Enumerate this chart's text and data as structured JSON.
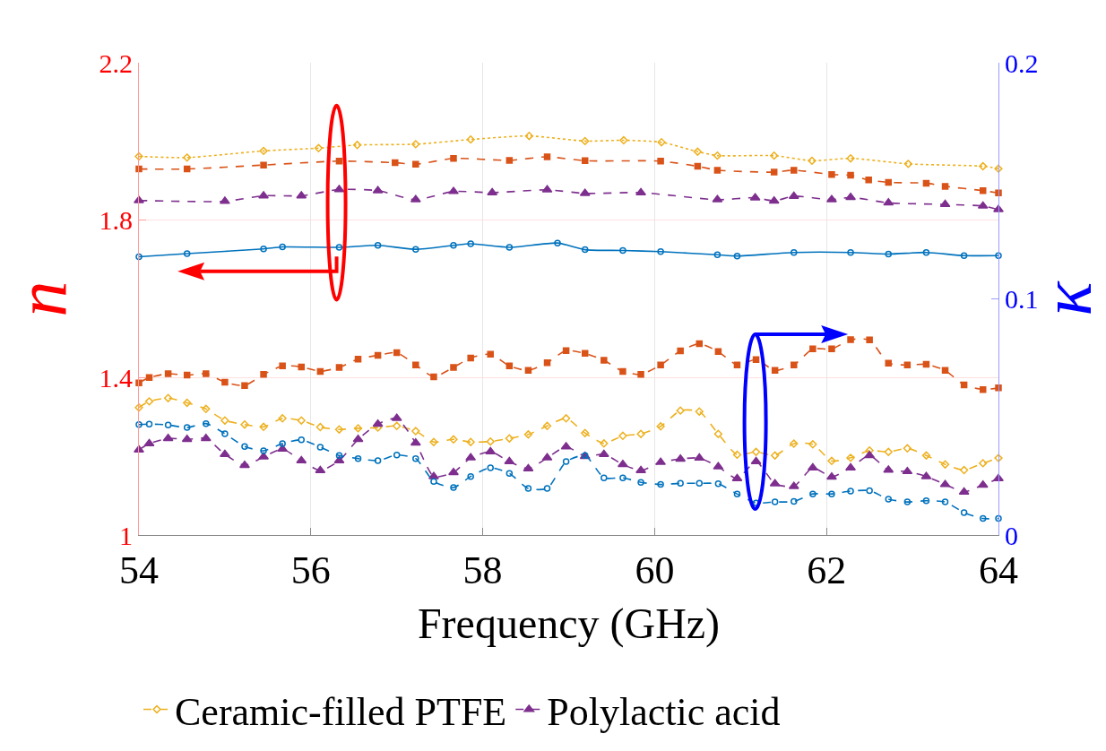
{
  "chart_data": {
    "type": "line",
    "xlabel": "Frequency (GHz)",
    "ylabel": "n",
    "y2label": "κ",
    "xlim": [
      54,
      64
    ],
    "xticks": [
      54,
      56,
      58,
      60,
      62,
      64
    ],
    "ylim": [
      1,
      2.2
    ],
    "yticks": [
      1,
      1.4,
      1.8,
      2.2
    ],
    "y2lim": [
      0,
      0.2
    ],
    "y2ticks": [
      0,
      0.1,
      0.2
    ],
    "grid": true,
    "legend": "bottom",
    "series": [
      {
        "color": "#edb120",
        "marker": "diamond",
        "line_style": "dotted",
        "x": [
          54,
          54.56,
          55.45,
          56.09,
          56.54,
          57.22,
          57.86,
          58.54,
          59.19,
          59.64,
          60.08,
          60.5,
          60.73,
          61.39,
          61.83,
          62.28,
          62.95,
          63.82,
          64
        ],
        "values": [
          1.962,
          1.959,
          1.976,
          1.983,
          1.991,
          1.993,
          2.005,
          2.014,
          2.001,
          2.003,
          1.998,
          1.974,
          1.964,
          1.964,
          1.951,
          1.957,
          1.943,
          1.937,
          1.931
        ]
      },
      {
        "color": "#d95319",
        "marker": "square",
        "line_style": "dashed",
        "x": [
          54,
          54.56,
          55.45,
          56.33,
          56.98,
          57.22,
          57.66,
          58.31,
          58.75,
          59.19,
          60.07,
          60.5,
          60.73,
          61.39,
          61.62,
          62.06,
          62.28,
          62.49,
          62.72,
          63.16,
          63.38,
          63.82,
          64
        ],
        "values": [
          1.93,
          1.93,
          1.94,
          1.95,
          1.946,
          1.942,
          1.957,
          1.952,
          1.961,
          1.951,
          1.95,
          1.937,
          1.927,
          1.922,
          1.927,
          1.916,
          1.914,
          1.902,
          1.896,
          1.894,
          1.886,
          1.875,
          1.869
        ]
      },
      {
        "color": "#7e2f8e",
        "marker": "triangle",
        "line_style": "dashed",
        "x": [
          54,
          55.0,
          55.45,
          55.89,
          56.33,
          56.78,
          57.22,
          57.66,
          58.11,
          58.75,
          59.19,
          59.84,
          60.73,
          61.17,
          61.39,
          61.62,
          62.06,
          62.28,
          62.72,
          63.38,
          63.82,
          64
        ],
        "values": [
          1.85,
          1.848,
          1.862,
          1.862,
          1.878,
          1.875,
          1.852,
          1.873,
          1.87,
          1.877,
          1.868,
          1.87,
          1.852,
          1.857,
          1.849,
          1.861,
          1.852,
          1.858,
          1.844,
          1.84,
          1.836,
          1.827
        ]
      },
      {
        "color": "#0072bd",
        "marker": "circle",
        "line_style": "solid",
        "x": [
          54,
          54.56,
          55.45,
          55.67,
          56.33,
          56.78,
          57.22,
          57.66,
          57.86,
          58.31,
          58.87,
          59.19,
          59.63,
          60.07,
          60.73,
          60.96,
          61.62,
          62.28,
          62.72,
          63.16,
          63.6,
          64
        ],
        "values": [
          1.707,
          1.715,
          1.727,
          1.732,
          1.731,
          1.736,
          1.726,
          1.736,
          1.74,
          1.731,
          1.742,
          1.725,
          1.723,
          1.72,
          1.712,
          1.709,
          1.718,
          1.718,
          1.714,
          1.718,
          1.71,
          1.71
        ]
      },
      {
        "color": "#d95319",
        "marker": "square",
        "line_style": "dashed",
        "axis": "y2",
        "x": [
          54,
          54.12,
          54.34,
          54.56,
          54.78,
          55.0,
          55.23,
          55.45,
          55.67,
          55.89,
          56.11,
          56.33,
          56.55,
          56.78,
          57.0,
          57.22,
          57.43,
          57.66,
          57.86,
          58.09,
          58.31,
          58.53,
          58.75,
          58.97,
          59.19,
          59.41,
          59.63,
          59.84,
          60.07,
          60.3,
          60.52,
          60.74,
          60.96,
          61.18,
          61.4,
          61.62,
          61.84,
          62.06,
          62.28,
          62.5,
          62.72,
          62.94,
          63.16,
          63.38,
          63.6,
          63.82,
          64
        ],
        "values": [
          0.0644,
          0.0667,
          0.0683,
          0.0677,
          0.0683,
          0.0647,
          0.0633,
          0.068,
          0.0716,
          0.0712,
          0.0693,
          0.071,
          0.0745,
          0.0761,
          0.0772,
          0.072,
          0.067,
          0.071,
          0.075,
          0.0766,
          0.0716,
          0.0697,
          0.073,
          0.0781,
          0.0769,
          0.074,
          0.0693,
          0.068,
          0.072,
          0.078,
          0.081,
          0.0777,
          0.072,
          0.0743,
          0.0697,
          0.072,
          0.0788,
          0.0788,
          0.0827,
          0.0826,
          0.0728,
          0.072,
          0.0723,
          0.0697,
          0.0636,
          0.0616,
          0.0623
        ]
      },
      {
        "name": "Ceramic-filled PTFE",
        "color": "#edb120",
        "marker": "diamond",
        "line_style": "dashed",
        "axis": "y2",
        "x": [
          54,
          54.12,
          54.34,
          54.56,
          54.78,
          55.0,
          55.23,
          55.45,
          55.67,
          55.89,
          56.11,
          56.33,
          56.55,
          56.78,
          57.0,
          57.22,
          57.43,
          57.66,
          57.86,
          58.09,
          58.31,
          58.53,
          58.75,
          58.97,
          59.19,
          59.41,
          59.63,
          59.84,
          60.07,
          60.3,
          60.52,
          60.74,
          60.96,
          61.18,
          61.4,
          61.62,
          61.84,
          62.06,
          62.28,
          62.5,
          62.72,
          62.94,
          63.16,
          63.38,
          63.6,
          63.82,
          64
        ],
        "values": [
          0.054,
          0.0566,
          0.058,
          0.056,
          0.0534,
          0.0485,
          0.0468,
          0.0458,
          0.0494,
          0.0485,
          0.0457,
          0.0447,
          0.0452,
          0.0455,
          0.0462,
          0.044,
          0.0394,
          0.0405,
          0.0394,
          0.0396,
          0.0409,
          0.0426,
          0.0462,
          0.0494,
          0.0432,
          0.0388,
          0.042,
          0.0428,
          0.046,
          0.0527,
          0.0523,
          0.0428,
          0.034,
          0.0352,
          0.0337,
          0.0387,
          0.0384,
          0.0314,
          0.0327,
          0.0358,
          0.0352,
          0.0367,
          0.0337,
          0.0299,
          0.0275,
          0.0304,
          0.0326
        ]
      },
      {
        "name": "Polylactic acid",
        "color": "#7e2f8e",
        "marker": "triangle",
        "line_style": "dashed",
        "axis": "y2",
        "x": [
          54,
          54.12,
          54.34,
          54.56,
          54.78,
          55.0,
          55.23,
          55.45,
          55.67,
          55.89,
          56.11,
          56.33,
          56.55,
          56.78,
          57.0,
          57.22,
          57.43,
          57.66,
          57.86,
          58.09,
          58.31,
          58.53,
          58.75,
          58.97,
          59.19,
          59.41,
          59.63,
          59.84,
          60.07,
          60.3,
          60.52,
          60.74,
          60.96,
          61.18,
          61.4,
          61.62,
          61.84,
          62.06,
          62.28,
          62.5,
          62.72,
          62.94,
          63.16,
          63.38,
          63.6,
          63.82,
          64
        ],
        "values": [
          0.0361,
          0.0387,
          0.0409,
          0.0405,
          0.0409,
          0.0342,
          0.0295,
          0.0331,
          0.0364,
          0.0315,
          0.0273,
          0.0315,
          0.0405,
          0.047,
          0.0494,
          0.039,
          0.0248,
          0.0265,
          0.0327,
          0.0353,
          0.0311,
          0.0281,
          0.0327,
          0.0374,
          0.0333,
          0.0342,
          0.0299,
          0.0273,
          0.0308,
          0.0322,
          0.0326,
          0.0289,
          0.0239,
          0.0311,
          0.0217,
          0.0206,
          0.0285,
          0.0246,
          0.0285,
          0.0337,
          0.0275,
          0.0269,
          0.0248,
          0.0214,
          0.0182,
          0.0212,
          0.0239
        ]
      },
      {
        "color": "#0072bd",
        "marker": "circle",
        "line_style": "dashed",
        "axis": "y2",
        "x": [
          54,
          54.12,
          54.34,
          54.56,
          54.78,
          55.0,
          55.23,
          55.45,
          55.67,
          55.89,
          56.11,
          56.33,
          56.55,
          56.78,
          57.0,
          57.22,
          57.43,
          57.66,
          57.86,
          58.09,
          58.31,
          58.53,
          58.75,
          58.97,
          59.19,
          59.41,
          59.63,
          59.84,
          60.07,
          60.3,
          60.52,
          60.74,
          60.96,
          61.18,
          61.4,
          61.62,
          61.84,
          62.06,
          62.28,
          62.5,
          62.72,
          62.94,
          63.16,
          63.38,
          63.6,
          63.82,
          64
        ],
        "values": [
          0.0468,
          0.047,
          0.0466,
          0.0455,
          0.0472,
          0.0429,
          0.0375,
          0.0357,
          0.0387,
          0.0403,
          0.0372,
          0.0337,
          0.0324,
          0.0315,
          0.0339,
          0.0324,
          0.0227,
          0.0201,
          0.0248,
          0.0285,
          0.0261,
          0.0197,
          0.0197,
          0.0311,
          0.0337,
          0.0242,
          0.0242,
          0.0223,
          0.0214,
          0.0219,
          0.0219,
          0.0217,
          0.0174,
          0.0136,
          0.014,
          0.0142,
          0.0174,
          0.0174,
          0.0186,
          0.0188,
          0.0152,
          0.014,
          0.0145,
          0.014,
          0.0095,
          0.007,
          0.007
        ]
      }
    ]
  }
}
